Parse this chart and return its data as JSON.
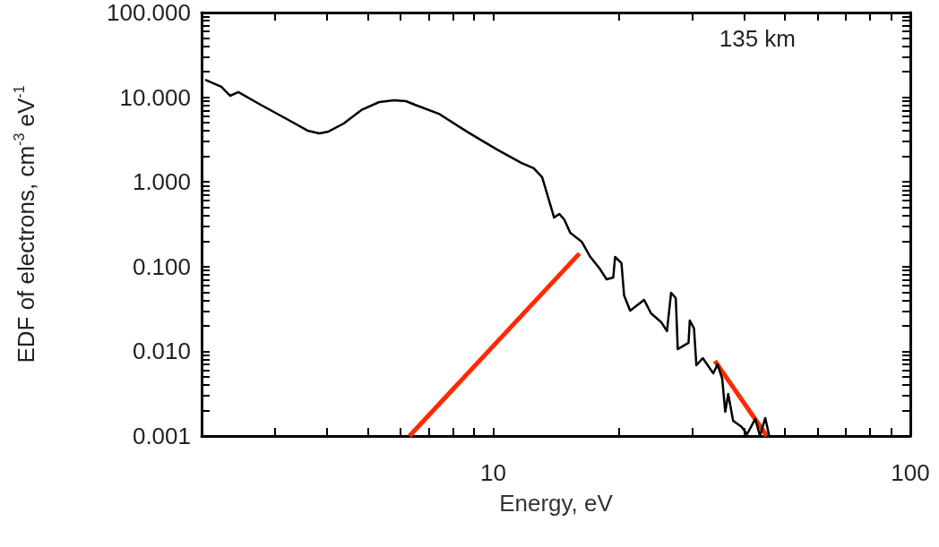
{
  "chart_data": {
    "type": "line",
    "xlabel": "Energy, eV",
    "ylabel": "EDF of electrons, cm$^{-3}$ eV$^{-1}$",
    "annotations": [
      "135 km"
    ],
    "log": "xy",
    "grid": false,
    "marker": "none",
    "line_style": "solid",
    "xlim": [
      2,
      100
    ],
    "ylim": [
      0.001,
      100
    ],
    "xticks": [
      {
        "value": 3,
        "label": null
      },
      {
        "value": 4,
        "label": null
      },
      {
        "value": 5,
        "label": null
      },
      {
        "value": 6,
        "label": null
      },
      {
        "value": 7,
        "label": null
      },
      {
        "value": 8,
        "label": null
      },
      {
        "value": 9,
        "label": null
      },
      10,
      {
        "value": 20,
        "label": null
      },
      {
        "value": 30,
        "label": null
      },
      {
        "value": 40,
        "label": null
      },
      {
        "value": 50,
        "label": null
      },
      {
        "value": 60,
        "label": null
      },
      {
        "value": 70,
        "label": null
      },
      {
        "value": 80,
        "label": null
      },
      {
        "value": 90,
        "label": null
      },
      100
    ],
    "yticks": [
      {
        "value": 0.001,
        "label": "0.001"
      },
      {
        "value": 0.002,
        "label": null
      },
      {
        "value": 0.003,
        "label": null
      },
      {
        "value": 0.004,
        "label": null
      },
      {
        "value": 0.005,
        "label": null
      },
      {
        "value": 0.006,
        "label": null
      },
      {
        "value": 0.007,
        "label": null
      },
      {
        "value": 0.008,
        "label": null
      },
      {
        "value": 0.009,
        "label": null
      },
      {
        "value": 0.01,
        "label": "0.010"
      },
      {
        "value": 0.02,
        "label": null
      },
      {
        "value": 0.03,
        "label": null
      },
      {
        "value": 0.04,
        "label": null
      },
      {
        "value": 0.05,
        "label": null
      },
      {
        "value": 0.06,
        "label": null
      },
      {
        "value": 0.07,
        "label": null
      },
      {
        "value": 0.08,
        "label": null
      },
      {
        "value": 0.09,
        "label": null
      },
      {
        "value": 0.1,
        "label": "0.100"
      },
      {
        "value": 0.2,
        "label": null
      },
      {
        "value": 0.3,
        "label": null
      },
      {
        "value": 0.4,
        "label": null
      },
      {
        "value": 0.5,
        "label": null
      },
      {
        "value": 0.6,
        "label": null
      },
      {
        "value": 0.7,
        "label": null
      },
      {
        "value": 0.8,
        "label": null
      },
      {
        "value": 0.9,
        "label": null
      },
      {
        "value": 1,
        "label": "1.000"
      },
      {
        "value": 2,
        "label": null
      },
      {
        "value": 3,
        "label": null
      },
      {
        "value": 4,
        "label": null
      },
      {
        "value": 5,
        "label": null
      },
      {
        "value": 6,
        "label": null
      },
      {
        "value": 7,
        "label": null
      },
      {
        "value": 8,
        "label": null
      },
      {
        "value": 9,
        "label": null
      },
      {
        "value": 10,
        "label": "10.000"
      },
      {
        "value": 20,
        "label": null
      },
      {
        "value": 30,
        "label": null
      },
      {
        "value": 40,
        "label": null
      },
      {
        "value": 50,
        "label": null
      },
      {
        "value": 60,
        "label": null
      },
      {
        "value": 70,
        "label": null
      },
      {
        "value": 80,
        "label": null
      },
      {
        "value": 90,
        "label": null
      },
      {
        "value": 100,
        "label": "100.000"
      }
    ],
    "series": [
      {
        "color": "#000000",
        "x": [
          2.04,
          2.23,
          2.34,
          2.45,
          2.77,
          3.26,
          3.59,
          3.83,
          4.03,
          4.38,
          4.83,
          5.33,
          5.79,
          6.18,
          6.49,
          7.41,
          8.71,
          10.2,
          11.7,
          12.5,
          13.1,
          13.4,
          14.0,
          14.4,
          14.8,
          15.3,
          16.3,
          17.1,
          18.0,
          18.7,
          19.4,
          19.6,
          20.3,
          20.6,
          21.3,
          23.0,
          23.9,
          25.3,
          26.1,
          26.7,
          27.4,
          27.7,
          29.4,
          29.6,
          30.3,
          30.7,
          31.8,
          33.7,
          34.5,
          35.4,
          36.0,
          36.6,
          37.6,
          39.4,
          40.6,
          42.5,
          43.6,
          44.9,
          45.9
        ],
        "values": [
          16.1,
          13.3,
          10.4,
          11.5,
          8.15,
          5.26,
          4.03,
          3.74,
          3.93,
          4.89,
          7.05,
          8.77,
          9.2,
          8.98,
          8.15,
          6.38,
          3.84,
          2.42,
          1.67,
          1.45,
          1.14,
          0.787,
          0.379,
          0.419,
          0.361,
          0.251,
          0.197,
          0.13,
          0.0948,
          0.0708,
          0.0743,
          0.13,
          0.11,
          0.0457,
          0.0302,
          0.0405,
          0.0281,
          0.022,
          0.0173,
          0.0491,
          0.0425,
          0.0106,
          0.0126,
          0.0231,
          0.0186,
          0.00684,
          0.00832,
          0.0055,
          0.00702,
          0.00475,
          0.00193,
          0.00314,
          0.00151,
          0.00128,
          0.00105,
          0.00159,
          0.001,
          0.00163,
          0.001
        ]
      },
      {
        "color": "#ff2a00",
        "x": [
          6.3,
          16.1
        ],
        "values": [
          0.001,
          0.143
        ]
      },
      {
        "color": "#ff2a00",
        "x": [
          34.0,
          45.3
        ],
        "values": [
          0.0077,
          0.001
        ]
      }
    ]
  }
}
